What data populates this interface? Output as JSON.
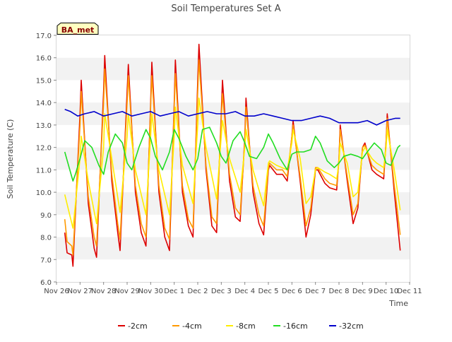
{
  "chart_data": {
    "type": "line",
    "title": "Soil Temperatures Set A",
    "xlabel": "Time",
    "ylabel": "Soil Temperature (C)",
    "site_badge": "BA_met",
    "ylim": [
      6.0,
      17.0
    ],
    "xlim": [
      0,
      15
    ],
    "yticks": [
      "6.0",
      "7.0",
      "8.0",
      "9.0",
      "10.0",
      "11.0",
      "12.0",
      "13.0",
      "14.0",
      "15.0",
      "16.0",
      "17.0"
    ],
    "xticks": [
      "Nov 26",
      "Nov 27",
      "Nov 28",
      "Nov 29",
      "Nov 30",
      "Dec 1",
      "Dec 2",
      "Dec 3",
      "Dec 4",
      "Dec 5",
      "Dec 6",
      "Dec 7",
      "Dec 8",
      "Dec 9",
      "Dec 10",
      "Dec 11"
    ],
    "grid": "horizontal bands",
    "legend_position": "bottom",
    "colors": {
      "-2cm": "#dd0000",
      "-4cm": "#ff9900",
      "-8cm": "#ffee00",
      "-16cm": "#22dd22",
      "-32cm": "#0000cc",
      "band": "#f2f2f2",
      "badge_bg": "#ffffc0",
      "badge_text": "#880000"
    },
    "series": [
      {
        "name": "-2cm",
        "x": [
          0.35,
          0.45,
          0.65,
          0.7,
          1.0,
          1.05,
          1.35,
          1.6,
          1.7,
          2.0,
          2.05,
          2.35,
          2.6,
          2.7,
          3.0,
          3.05,
          3.35,
          3.6,
          3.8,
          4.0,
          4.05,
          4.35,
          4.6,
          4.8,
          5.0,
          5.05,
          5.35,
          5.6,
          5.8,
          6.0,
          6.05,
          6.35,
          6.6,
          6.8,
          7.0,
          7.05,
          7.35,
          7.6,
          7.8,
          8.0,
          8.05,
          8.35,
          8.6,
          8.8,
          9.0,
          9.05,
          9.35,
          9.6,
          9.8,
          10.0,
          10.05,
          10.35,
          10.6,
          10.8,
          11.0,
          11.1,
          11.4,
          11.6,
          11.9,
          12.0,
          12.05,
          12.35,
          12.6,
          12.8,
          13.0,
          13.1,
          13.4,
          13.6,
          13.9,
          14.0,
          14.05,
          14.35,
          14.6
        ],
        "values": [
          8.2,
          7.3,
          7.2,
          6.7,
          13.5,
          15.0,
          9.5,
          7.5,
          7.1,
          14.5,
          16.1,
          10.5,
          8.2,
          7.4,
          14.5,
          15.7,
          10.0,
          8.2,
          7.6,
          14.0,
          15.8,
          10.0,
          8.0,
          7.4,
          14.0,
          15.9,
          10.0,
          8.5,
          8.0,
          15.0,
          16.6,
          11.0,
          8.5,
          8.2,
          13.5,
          15.0,
          10.5,
          8.9,
          8.7,
          12.5,
          14.2,
          10.0,
          8.6,
          8.1,
          11.0,
          11.2,
          10.8,
          10.8,
          10.5,
          12.5,
          13.2,
          10.5,
          8.0,
          9.0,
          11.0,
          11.0,
          10.4,
          10.2,
          10.1,
          11.5,
          13.0,
          10.5,
          8.6,
          9.3,
          12.0,
          12.2,
          11.0,
          10.8,
          10.6,
          12.3,
          13.5,
          10.0,
          7.4
        ]
      },
      {
        "name": "-4cm",
        "x": [
          0.35,
          0.45,
          0.65,
          0.7,
          1.0,
          1.05,
          1.35,
          1.6,
          1.7,
          2.0,
          2.05,
          2.35,
          2.6,
          2.7,
          3.0,
          3.05,
          3.35,
          3.6,
          3.8,
          4.0,
          4.05,
          4.35,
          4.6,
          4.8,
          5.0,
          5.05,
          5.35,
          5.6,
          5.8,
          6.0,
          6.05,
          6.35,
          6.6,
          6.8,
          7.0,
          7.05,
          7.35,
          7.6,
          7.8,
          8.0,
          8.05,
          8.35,
          8.6,
          8.8,
          9.0,
          9.05,
          9.35,
          9.6,
          9.8,
          10.0,
          10.05,
          10.35,
          10.6,
          10.8,
          11.0,
          11.1,
          11.4,
          11.6,
          11.9,
          12.0,
          12.05,
          12.35,
          12.6,
          12.8,
          13.0,
          13.1,
          13.4,
          13.6,
          13.9,
          14.0,
          14.05,
          14.35,
          14.6
        ],
        "values": [
          8.8,
          7.8,
          7.6,
          7.2,
          13.0,
          14.5,
          9.8,
          8.0,
          7.6,
          14.0,
          15.5,
          10.8,
          8.6,
          7.9,
          14.0,
          15.2,
          10.3,
          8.6,
          8.0,
          13.8,
          15.2,
          10.3,
          8.4,
          7.9,
          13.8,
          15.3,
          10.3,
          8.8,
          8.4,
          14.5,
          15.9,
          11.2,
          8.9,
          8.6,
          13.3,
          14.4,
          10.8,
          9.3,
          9.0,
          12.3,
          13.8,
          10.3,
          9.0,
          8.5,
          11.1,
          11.3,
          11.0,
          11.0,
          10.7,
          12.5,
          13.0,
          10.7,
          8.5,
          9.3,
          11.1,
          11.1,
          10.6,
          10.4,
          10.3,
          11.5,
          12.8,
          10.7,
          9.0,
          9.5,
          12.0,
          12.1,
          11.2,
          11.0,
          10.8,
          12.2,
          13.3,
          10.3,
          8.1
        ]
      },
      {
        "name": "-8cm",
        "x": [
          0.35,
          0.7,
          1.0,
          1.05,
          1.35,
          1.7,
          2.0,
          2.05,
          2.35,
          2.7,
          3.0,
          3.05,
          3.35,
          3.8,
          4.0,
          4.05,
          4.35,
          4.8,
          5.0,
          5.05,
          5.35,
          5.8,
          6.0,
          6.05,
          6.35,
          6.8,
          7.0,
          7.05,
          7.35,
          7.8,
          8.0,
          8.05,
          8.35,
          8.8,
          9.0,
          9.05,
          9.35,
          9.8,
          10.0,
          10.05,
          10.35,
          10.6,
          10.8,
          11.0,
          11.1,
          11.4,
          11.6,
          11.9,
          12.0,
          12.05,
          12.35,
          12.6,
          12.8,
          13.0,
          13.1,
          13.4,
          13.6,
          13.9,
          14.0,
          14.05,
          14.35,
          14.6
        ],
        "values": [
          9.9,
          8.4,
          11.5,
          12.5,
          10.5,
          8.6,
          12.0,
          13.5,
          11.5,
          9.1,
          12.5,
          13.5,
          11.0,
          9.0,
          12.5,
          13.5,
          11.0,
          9.0,
          12.5,
          13.8,
          11.2,
          9.5,
          13.0,
          14.2,
          12.0,
          9.7,
          12.5,
          13.2,
          11.5,
          10.0,
          12.0,
          12.8,
          11.0,
          9.4,
          11.3,
          11.4,
          11.2,
          11.0,
          12.2,
          12.8,
          11.5,
          9.5,
          9.8,
          11.0,
          11.1,
          10.9,
          10.8,
          10.6,
          11.3,
          12.2,
          11.3,
          9.8,
          10.0,
          11.8,
          12.0,
          11.5,
          11.3,
          11.1,
          12.0,
          12.8,
          11.0,
          9.2
        ]
      },
      {
        "name": "-16cm",
        "x": [
          0.35,
          0.7,
          0.8,
          1.0,
          1.2,
          1.5,
          1.8,
          2.0,
          2.2,
          2.5,
          2.8,
          3.0,
          3.2,
          3.5,
          3.8,
          4.0,
          4.2,
          4.5,
          4.8,
          5.0,
          5.2,
          5.5,
          5.8,
          6.0,
          6.2,
          6.5,
          6.8,
          7.0,
          7.2,
          7.5,
          7.8,
          8.0,
          8.2,
          8.5,
          8.8,
          9.0,
          9.2,
          9.5,
          9.8,
          10.0,
          10.2,
          10.5,
          10.8,
          11.0,
          11.2,
          11.5,
          11.8,
          12.0,
          12.2,
          12.5,
          12.8,
          13.0,
          13.2,
          13.5,
          13.8,
          14.0,
          14.2,
          14.5,
          14.6
        ],
        "values": [
          11.8,
          10.5,
          10.8,
          11.5,
          12.3,
          12.0,
          11.2,
          10.8,
          11.8,
          12.6,
          12.2,
          11.3,
          11.0,
          12.0,
          12.8,
          12.4,
          11.6,
          11.0,
          11.8,
          12.8,
          12.4,
          11.6,
          11.0,
          11.5,
          12.8,
          12.9,
          12.2,
          11.6,
          11.3,
          12.3,
          12.7,
          12.2,
          11.6,
          11.5,
          12.0,
          12.6,
          12.2,
          11.5,
          11.0,
          11.7,
          11.8,
          11.8,
          11.9,
          12.5,
          12.2,
          11.4,
          11.1,
          11.3,
          11.6,
          11.7,
          11.6,
          11.5,
          11.8,
          12.2,
          11.9,
          11.3,
          11.2,
          12.0,
          12.1
        ]
      },
      {
        "name": "-32cm",
        "x": [
          0.35,
          0.6,
          0.9,
          1.2,
          1.6,
          2.0,
          2.4,
          2.8,
          3.2,
          3.6,
          4.0,
          4.4,
          4.8,
          5.2,
          5.6,
          6.0,
          6.4,
          6.8,
          7.2,
          7.6,
          8.0,
          8.4,
          8.8,
          9.2,
          9.6,
          10.0,
          10.4,
          10.8,
          11.2,
          11.6,
          12.0,
          12.4,
          12.8,
          13.2,
          13.6,
          14.0,
          14.4,
          14.6
        ],
        "values": [
          13.7,
          13.6,
          13.4,
          13.5,
          13.6,
          13.4,
          13.5,
          13.6,
          13.4,
          13.5,
          13.6,
          13.4,
          13.5,
          13.6,
          13.4,
          13.5,
          13.6,
          13.5,
          13.5,
          13.6,
          13.4,
          13.4,
          13.5,
          13.4,
          13.3,
          13.2,
          13.2,
          13.3,
          13.4,
          13.3,
          13.1,
          13.1,
          13.1,
          13.2,
          13.0,
          13.2,
          13.3,
          13.3
        ]
      }
    ]
  }
}
